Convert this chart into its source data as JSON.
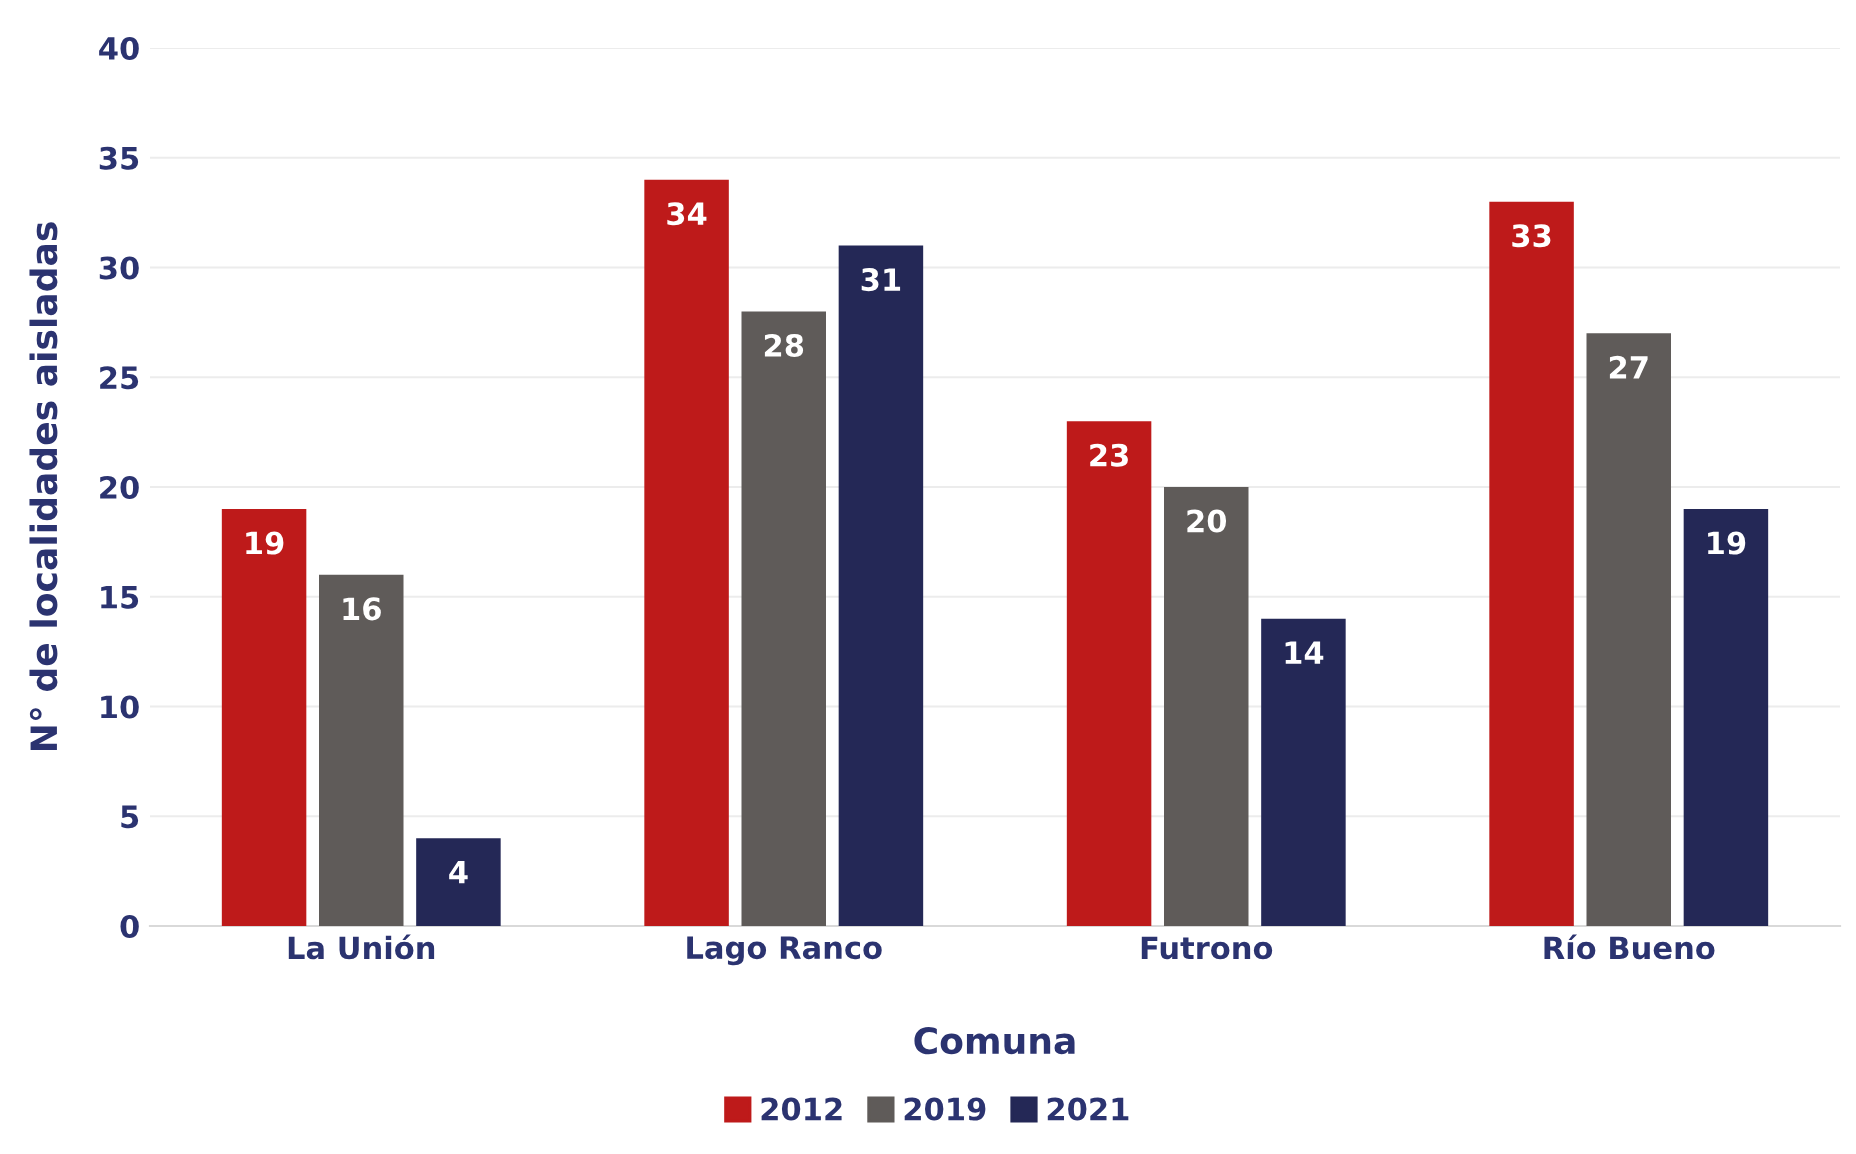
{
  "chart_data": {
    "type": "bar",
    "xlabel": "Comuna",
    "ylabel": "N° de localidades aisladas",
    "categories": [
      "La Unión",
      "Lago Ranco",
      "Futrono",
      "Río Bueno"
    ],
    "series": [
      {
        "name": "2012",
        "color": "#be1a1a",
        "values": [
          19,
          34,
          23,
          33
        ]
      },
      {
        "name": "2019",
        "color": "#5f5b59",
        "values": [
          16,
          28,
          20,
          27
        ]
      },
      {
        "name": "2021",
        "color": "#242856",
        "values": [
          4,
          31,
          14,
          19
        ]
      }
    ],
    "ylim": [
      0,
      40
    ],
    "yticks": [
      0,
      5,
      10,
      15,
      20,
      25,
      30,
      35,
      40
    ],
    "grid": "y",
    "legend": "bottom",
    "data_labels": true
  }
}
